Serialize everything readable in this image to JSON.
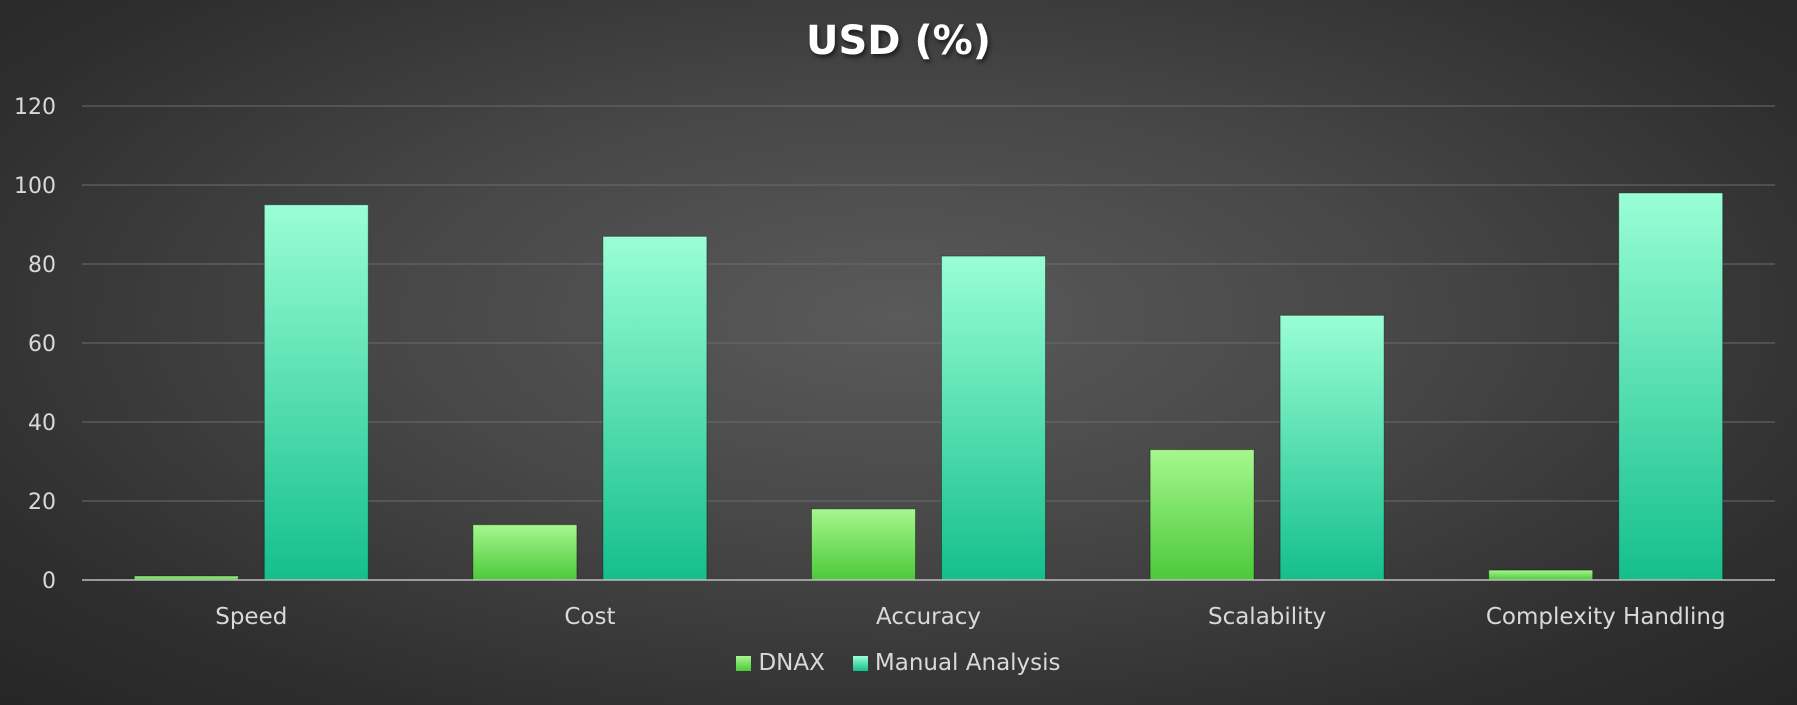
{
  "chart_data": {
    "type": "bar",
    "title": "USD (%)",
    "categories": [
      "Speed",
      "Cost",
      "Accuracy",
      "Scalability",
      "Complexity Handling"
    ],
    "series": [
      {
        "name": "DNAX",
        "values": [
          1,
          14,
          18,
          33,
          2.5
        ],
        "color_top": "#a6f78e",
        "color_bottom": "#4cc93a"
      },
      {
        "name": "Manual Analysis",
        "values": [
          95,
          87,
          82,
          67,
          98
        ],
        "color_top": "#9afed6",
        "color_bottom": "#14bf8c"
      }
    ],
    "xlabel": "",
    "ylabel": "",
    "ylim": [
      0,
      120
    ],
    "yticks": [
      0,
      20,
      40,
      60,
      80,
      100,
      120
    ],
    "grid": true,
    "legend_position": "bottom"
  }
}
